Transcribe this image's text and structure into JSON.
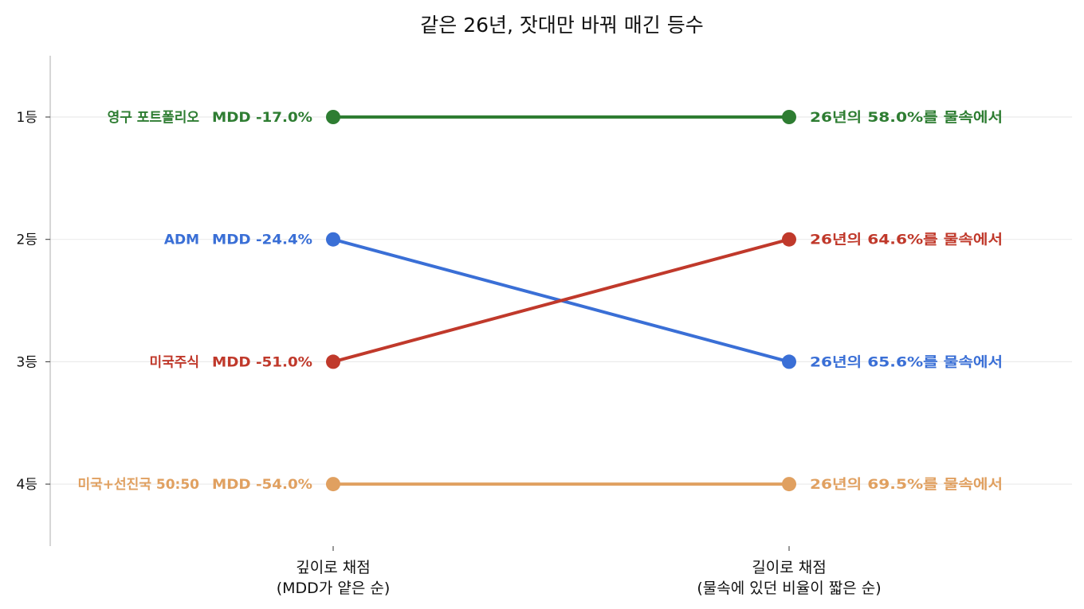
{
  "chart_data": {
    "type": "line",
    "title": "같은 26년, 잣대만 바꿔 매긴 등수",
    "x_categories": [
      [
        "깊이로 채점",
        "(MDD가 얕은 순)"
      ],
      [
        "길이로 채점",
        "(물속에 있던 비율이 짧은 순)"
      ]
    ],
    "y_ticks": [
      "1등",
      "2등",
      "3등",
      "4등"
    ],
    "ylim": [
      0.5,
      4.5
    ],
    "y_inverted": true,
    "grid": "horizontal",
    "series": [
      {
        "name": "영구 포트폴리오",
        "color": "#2e7d32",
        "ranks": [
          1,
          1
        ],
        "left_label": "MDD -17.0%",
        "right_label": "26년의 58.0%를 물속에서",
        "mdd_pct": -17.0,
        "underwater_pct": 58.0
      },
      {
        "name": "ADM",
        "color": "#3a6fd6",
        "ranks": [
          2,
          3
        ],
        "left_label": "MDD -24.4%",
        "right_label": "26년의 65.6%를 물속에서",
        "mdd_pct": -24.4,
        "underwater_pct": 65.6
      },
      {
        "name": "미국주식",
        "color": "#c0392b",
        "ranks": [
          3,
          2
        ],
        "left_label": "MDD -51.0%",
        "right_label": "26년의 64.6%를 물속에서",
        "mdd_pct": -51.0,
        "underwater_pct": 64.6
      },
      {
        "name": "미국+선진국 50:50",
        "color": "#e0a060",
        "ranks": [
          4,
          4
        ],
        "left_label": "MDD -54.0%",
        "right_label": "26년의 69.5%를 물속에서",
        "mdd_pct": -54.0,
        "underwater_pct": 69.5
      }
    ]
  }
}
